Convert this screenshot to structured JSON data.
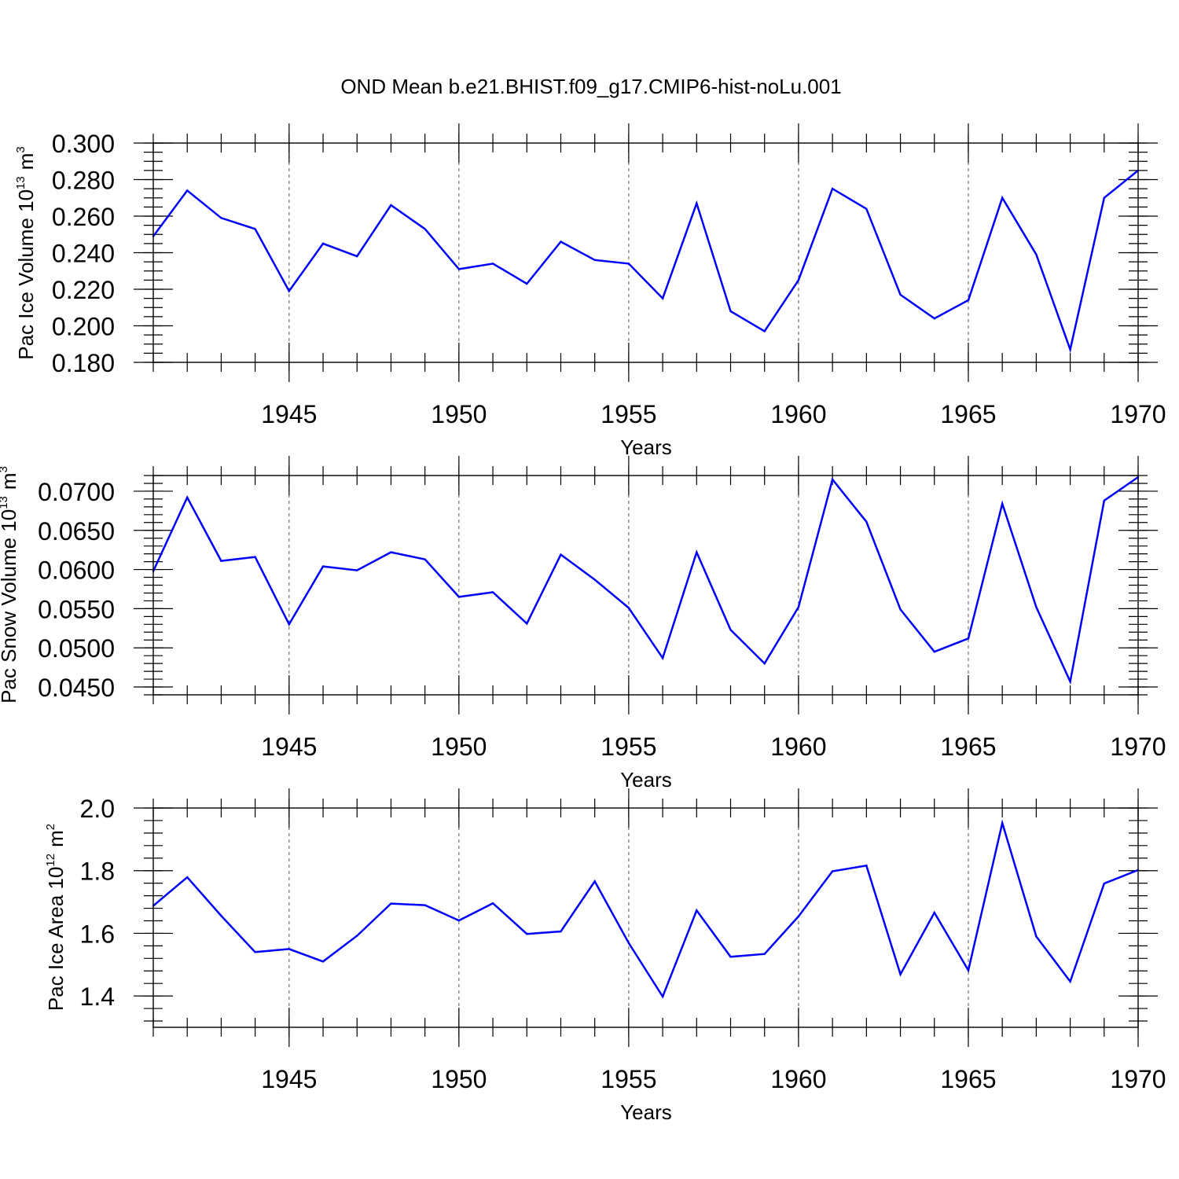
{
  "title": "OND Mean b.e21.BHIST.f09_g17.CMIP6-hist-noLu.001",
  "line_color": "#0000ff",
  "chart_data": [
    {
      "type": "line",
      "ylabel": "Pac Ice Volume 10",
      "ylabel_exp": "13",
      "ylabel_unit": "m",
      "ylabel_unit_exp": "3",
      "xlabel": "Years",
      "xlim": [
        1941,
        1970
      ],
      "ylim": [
        0.18,
        0.3
      ],
      "yticks": [
        0.18,
        0.2,
        0.22,
        0.24,
        0.26,
        0.28,
        0.3
      ],
      "ytick_labels": [
        "0.180",
        "0.200",
        "0.220",
        "0.240",
        "0.260",
        "0.280",
        "0.300"
      ],
      "xticks": [
        1945,
        1950,
        1955,
        1960,
        1965,
        1970
      ],
      "xtick_labels": [
        "1945",
        "1950",
        "1955",
        "1960",
        "1965",
        "1970"
      ],
      "grid": "dashed verticals at labeled years",
      "x": [
        1941,
        1942,
        1943,
        1944,
        1945,
        1946,
        1947,
        1948,
        1949,
        1950,
        1951,
        1952,
        1953,
        1954,
        1955,
        1956,
        1957,
        1958,
        1959,
        1960,
        1961,
        1962,
        1963,
        1964,
        1965,
        1966,
        1967,
        1968,
        1969,
        1970
      ],
      "values": [
        0.249,
        0.274,
        0.259,
        0.253,
        0.219,
        0.245,
        0.238,
        0.266,
        0.253,
        0.231,
        0.234,
        0.223,
        0.246,
        0.236,
        0.234,
        0.215,
        0.267,
        0.208,
        0.197,
        0.225,
        0.275,
        0.264,
        0.217,
        0.204,
        0.214,
        0.27,
        0.239,
        0.187,
        0.27,
        0.285
      ]
    },
    {
      "type": "line",
      "ylabel": "Pac Snow Volume 10",
      "ylabel_exp": "13",
      "ylabel_unit": "m",
      "ylabel_unit_exp": "3",
      "xlabel": "Years",
      "xlim": [
        1941,
        1970
      ],
      "ylim": [
        0.044,
        0.072
      ],
      "yticks": [
        0.045,
        0.05,
        0.055,
        0.06,
        0.065,
        0.07
      ],
      "ytick_labels": [
        "0.0450",
        "0.0500",
        "0.0550",
        "0.0600",
        "0.0650",
        "0.0700"
      ],
      "xticks": [
        1945,
        1950,
        1955,
        1960,
        1965,
        1970
      ],
      "xtick_labels": [
        "1945",
        "1950",
        "1955",
        "1960",
        "1965",
        "1970"
      ],
      "grid": "dashed verticals at labeled years",
      "x": [
        1941,
        1942,
        1943,
        1944,
        1945,
        1946,
        1947,
        1948,
        1949,
        1950,
        1951,
        1952,
        1953,
        1954,
        1955,
        1956,
        1957,
        1958,
        1959,
        1960,
        1961,
        1962,
        1963,
        1964,
        1965,
        1966,
        1967,
        1968,
        1969,
        1970
      ],
      "values": [
        0.0598,
        0.0692,
        0.0611,
        0.0616,
        0.053,
        0.0604,
        0.0599,
        0.0622,
        0.0613,
        0.0565,
        0.0571,
        0.0531,
        0.0619,
        0.0587,
        0.0551,
        0.0487,
        0.0622,
        0.0523,
        0.048,
        0.0552,
        0.0715,
        0.0661,
        0.0549,
        0.0495,
        0.0512,
        0.0684,
        0.0552,
        0.0457,
        0.0688,
        0.0718
      ]
    },
    {
      "type": "line",
      "ylabel": "Pac Ice Area 10",
      "ylabel_exp": "12",
      "ylabel_unit": "m",
      "ylabel_unit_exp": "2",
      "xlabel": "Years",
      "xlim": [
        1941,
        1970
      ],
      "ylim": [
        1.3,
        2.0
      ],
      "yticks": [
        1.4,
        1.6,
        1.8,
        2.0
      ],
      "ytick_labels": [
        "1.4",
        "1.6",
        "1.8",
        "2.0"
      ],
      "xticks": [
        1945,
        1950,
        1955,
        1960,
        1965,
        1970
      ],
      "xtick_labels": [
        "1945",
        "1950",
        "1955",
        "1960",
        "1965",
        "1970"
      ],
      "grid": "dashed verticals at labeled years",
      "x": [
        1941,
        1942,
        1943,
        1944,
        1945,
        1946,
        1947,
        1948,
        1949,
        1950,
        1951,
        1952,
        1953,
        1954,
        1955,
        1956,
        1957,
        1958,
        1959,
        1960,
        1961,
        1962,
        1963,
        1964,
        1965,
        1966,
        1967,
        1968,
        1969,
        1970
      ],
      "values": [
        1.688,
        1.779,
        1.656,
        1.54,
        1.55,
        1.51,
        1.592,
        1.695,
        1.69,
        1.641,
        1.696,
        1.598,
        1.606,
        1.766,
        1.569,
        1.398,
        1.673,
        1.525,
        1.534,
        1.654,
        1.798,
        1.816,
        1.469,
        1.666,
        1.482,
        1.952,
        1.59,
        1.446,
        1.759,
        1.802
      ]
    }
  ]
}
